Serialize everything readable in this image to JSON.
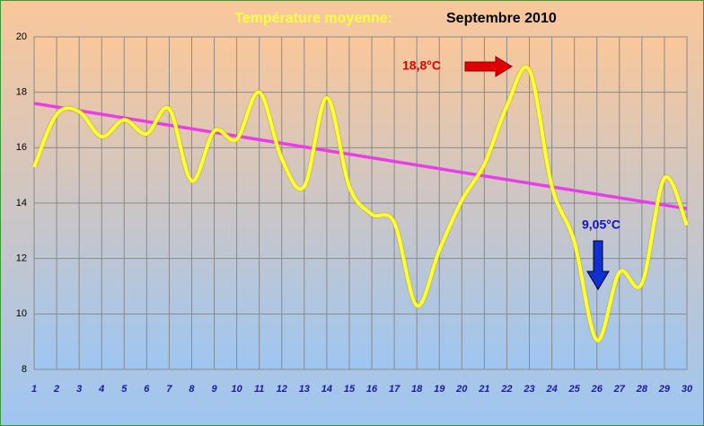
{
  "chart_data": {
    "type": "line",
    "title": "Température moyenne:",
    "subtitle": "Septembre 2010",
    "x": [
      1,
      2,
      3,
      4,
      5,
      6,
      7,
      8,
      9,
      10,
      11,
      12,
      13,
      14,
      15,
      16,
      17,
      18,
      19,
      20,
      21,
      22,
      23,
      24,
      25,
      26,
      27,
      28,
      29,
      30
    ],
    "xlim": [
      1,
      30
    ],
    "xticks": [
      1,
      2,
      3,
      4,
      5,
      6,
      7,
      8,
      9,
      10,
      11,
      12,
      13,
      14,
      15,
      16,
      17,
      18,
      19,
      20,
      21,
      22,
      23,
      24,
      25,
      26,
      27,
      28,
      29,
      30
    ],
    "ylim": [
      8,
      20
    ],
    "yticks": [
      8,
      10,
      12,
      14,
      16,
      18,
      20
    ],
    "grid": true,
    "series": [
      {
        "color": "#ffff33",
        "values": [
          15.3,
          17.2,
          17.3,
          16.4,
          17.0,
          16.5,
          17.4,
          14.8,
          16.6,
          16.3,
          18.0,
          15.6,
          14.6,
          17.8,
          14.6,
          13.6,
          13.3,
          10.3,
          12.3,
          14.1,
          15.4,
          17.5,
          18.8,
          14.6,
          12.6,
          9.05,
          11.5,
          11.1,
          14.9,
          13.2
        ]
      }
    ],
    "trendline": {
      "color": "#e83ee8",
      "x": [
        1,
        30
      ],
      "values": [
        17.6,
        13.8
      ]
    },
    "annotations": [
      {
        "text": "18,8°C",
        "color": "#e00000"
      },
      {
        "text": "9,05°C",
        "color": "#1010d0"
      }
    ]
  }
}
